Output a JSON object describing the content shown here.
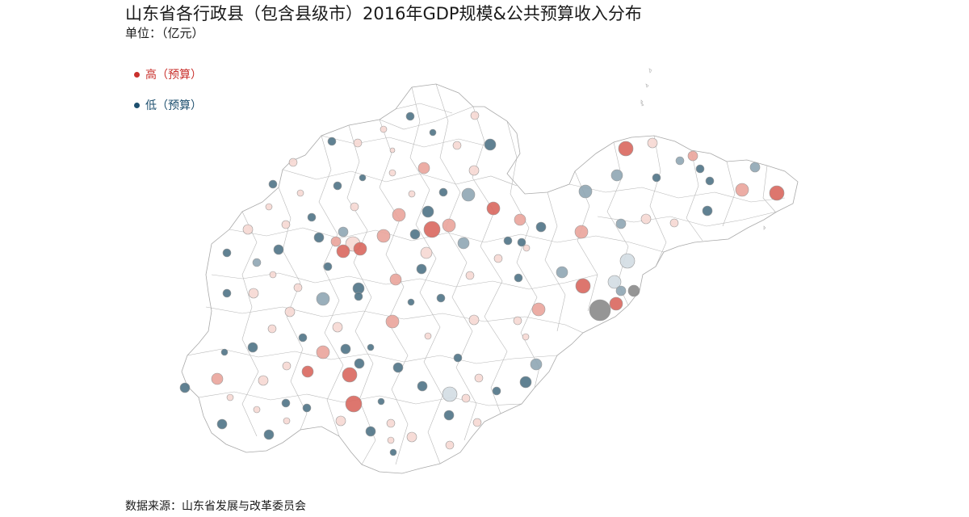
{
  "title": "山东省各行政县（包含县级市）2016年GDP规模&公共预算收入分布",
  "subtitle": "单位：（亿元）",
  "legend": {
    "high": {
      "label": "高（预算）",
      "color": "#c9302c"
    },
    "low": {
      "label": "低（预算）",
      "color": "#1d4f6e"
    }
  },
  "source": "数据来源：山东省发展与改革委员会",
  "colors": {
    "border": "#b8b8b8",
    "high_dark": "#d9675e",
    "high_mid": "#eaa49b",
    "high_light": "#f6d8d3",
    "low_dark": "#4f7386",
    "low_mid": "#8fa6b4",
    "low_light": "#d3dde3",
    "neutral": "#8a8a8a"
  }
}
